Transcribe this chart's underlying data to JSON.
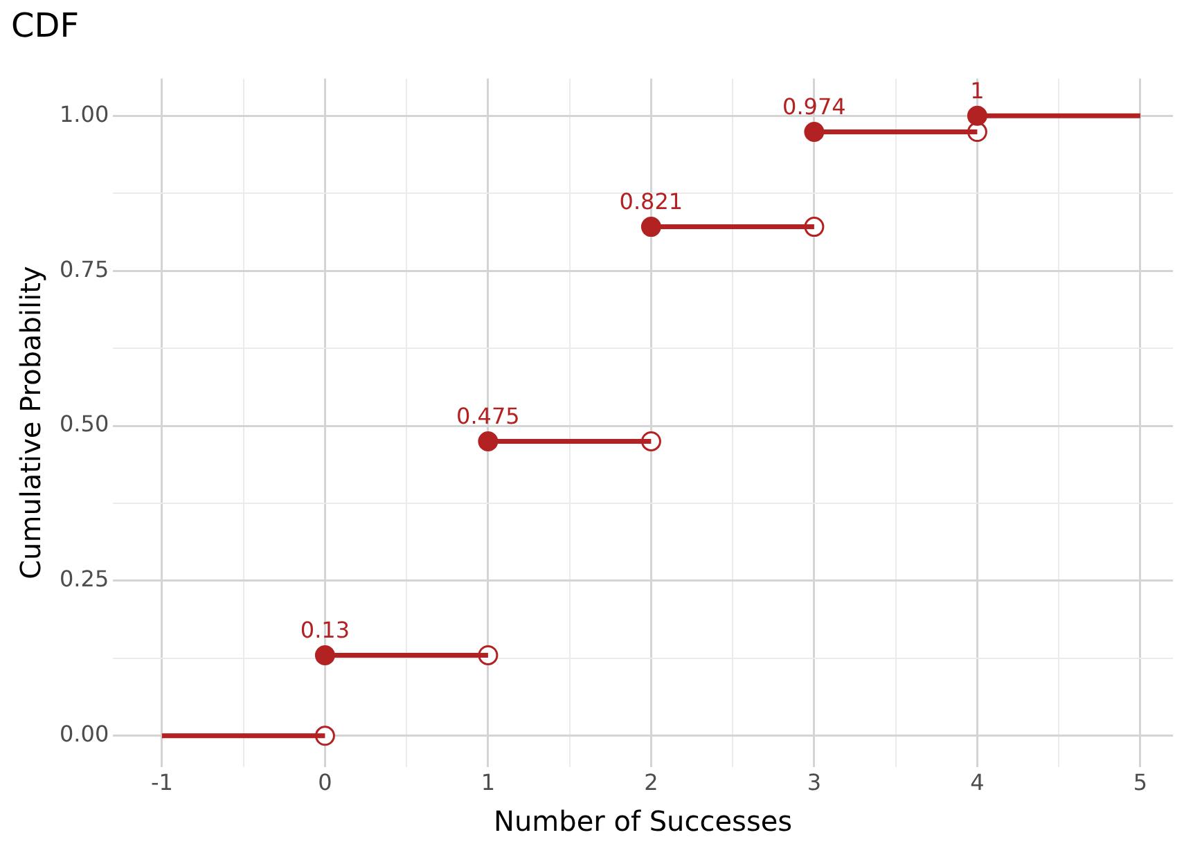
{
  "chart_data": {
    "type": "line",
    "title": "CDF",
    "xlabel": "Number of Successes",
    "ylabel": "Cumulative Probability",
    "xlim": [
      -1.3,
      5.2
    ],
    "ylim": [
      -0.05,
      1.06
    ],
    "xticks": [
      -1,
      {
        "value": -0.5,
        "label": null
      },
      0,
      {
        "value": 0.5,
        "label": null
      },
      1,
      {
        "value": 1.5,
        "label": null
      },
      2,
      {
        "value": 2.5,
        "label": null
      },
      3,
      {
        "value": 3.5,
        "label": null
      },
      4,
      {
        "value": 4.5,
        "label": null
      },
      5
    ],
    "yticks": [
      {
        "value": 0,
        "label": "0.00"
      },
      {
        "value": 0.125,
        "label": null
      },
      {
        "value": 0.25,
        "label": "0.25"
      },
      {
        "value": 0.375,
        "label": null
      },
      {
        "value": 0.5,
        "label": "0.50"
      },
      {
        "value": 0.625,
        "label": null
      },
      {
        "value": 0.75,
        "label": "0.75"
      },
      {
        "value": 0.875,
        "label": null
      },
      {
        "value": 1,
        "label": "1.00"
      }
    ],
    "grid": true,
    "legend": false,
    "series": [
      {
        "color": "#b22222",
        "marker": "none",
        "x": [
          -1,
          0
        ],
        "values": [
          0,
          0
        ]
      },
      {
        "color": "#b22222",
        "marker": "none",
        "x": [
          0,
          1
        ],
        "values": [
          0.13,
          0.13
        ]
      },
      {
        "color": "#b22222",
        "marker": "none",
        "x": [
          1,
          2
        ],
        "values": [
          0.475,
          0.475
        ]
      },
      {
        "color": "#b22222",
        "marker": "none",
        "x": [
          2,
          3
        ],
        "values": [
          0.821,
          0.821
        ]
      },
      {
        "color": "#b22222",
        "marker": "none",
        "x": [
          3,
          4
        ],
        "values": [
          0.974,
          0.974
        ]
      },
      {
        "color": "#b22222",
        "marker": "none",
        "x": [
          4,
          5
        ],
        "values": [
          1,
          1
        ]
      },
      {
        "type": "scatter",
        "color": "#b22222",
        "marker": "circle",
        "x": [
          0,
          1,
          2,
          3,
          4
        ],
        "values": [
          0.13,
          0.475,
          0.821,
          0.974,
          1
        ],
        "value_labels": [
          "0.13",
          "0.475",
          "0.821",
          "0.974",
          "1"
        ]
      },
      {
        "type": "scatter",
        "color": "#b22222",
        "marker": "circle",
        "x": [
          0,
          1,
          2,
          3,
          4
        ],
        "values": [
          0,
          0.13,
          0.475,
          0.821,
          0.974
        ]
      }
    ]
  }
}
